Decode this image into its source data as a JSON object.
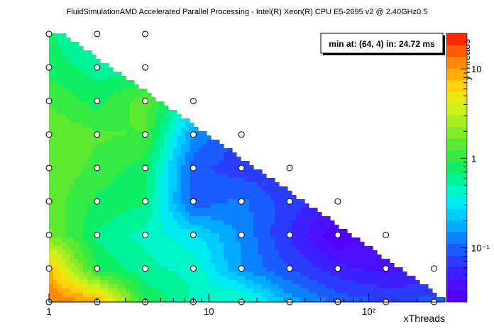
{
  "chart_data": {
    "type": "heatmap",
    "title": "FluidSimulationAMD Accelerated Parallel Processing - Intel(R) Xeon(R) CPU E5-2695 v2 @ 2.40GHz0.5",
    "xlabel": "xThreads",
    "ylabel": "yThreads",
    "x_scale": "log2-grid",
    "x_ticks": [
      "1",
      "10",
      "10²"
    ],
    "z_scale": "log",
    "z_ticks": [
      "10",
      "1",
      "10⁻¹"
    ],
    "z_range": [
      0.0247,
      25
    ],
    "annotation": "min at: (64, 4) in: 24.72 ms",
    "x_values": [
      1,
      2,
      4,
      8,
      16,
      32,
      64,
      128,
      256
    ],
    "y_values": [
      1,
      2,
      4,
      8,
      16,
      32,
      64,
      128,
      256
    ],
    "z_values": [
      [
        14.0,
        10.0,
        0.9,
        0.5,
        0.55,
        0.18,
        0.1,
        0.08,
        0.09
      ],
      [
        8.0,
        0.85,
        0.55,
        0.45,
        0.15,
        0.08,
        0.05,
        0.04,
        0.045
      ],
      [
        1.8,
        0.65,
        0.45,
        0.3,
        0.14,
        0.06,
        0.0247,
        0.045,
        null
      ],
      [
        1.5,
        0.85,
        0.7,
        0.09,
        0.12,
        0.07,
        0.05,
        null,
        null
      ],
      [
        1.7,
        1.1,
        0.8,
        0.09,
        0.07,
        0.06,
        null,
        null,
        null
      ],
      [
        1.6,
        1.3,
        1.2,
        0.15,
        0.07,
        null,
        null,
        null,
        null
      ],
      [
        1.2,
        0.8,
        1.5,
        0.35,
        null,
        null,
        null,
        null,
        null
      ],
      [
        0.8,
        0.6,
        0.55,
        null,
        null,
        null,
        null,
        null,
        null
      ],
      [
        0.7,
        0.45,
        0.4,
        null,
        null,
        null,
        null,
        null,
        null
      ]
    ],
    "palette": [
      "#5500ff",
      "#4a10ff",
      "#3d22ff",
      "#2c3cff",
      "#1a5cff",
      "#0b82ff",
      "#00aaff",
      "#00ccff",
      "#00eaf2",
      "#00f5c8",
      "#00f398",
      "#10ee66",
      "#35ea40",
      "#5ae830",
      "#82ea28",
      "#a8ee20",
      "#ccf018",
      "#e8e810",
      "#ffd20c",
      "#ffae08",
      "#ff8804",
      "#ff5c02",
      "#ff2800"
    ]
  }
}
